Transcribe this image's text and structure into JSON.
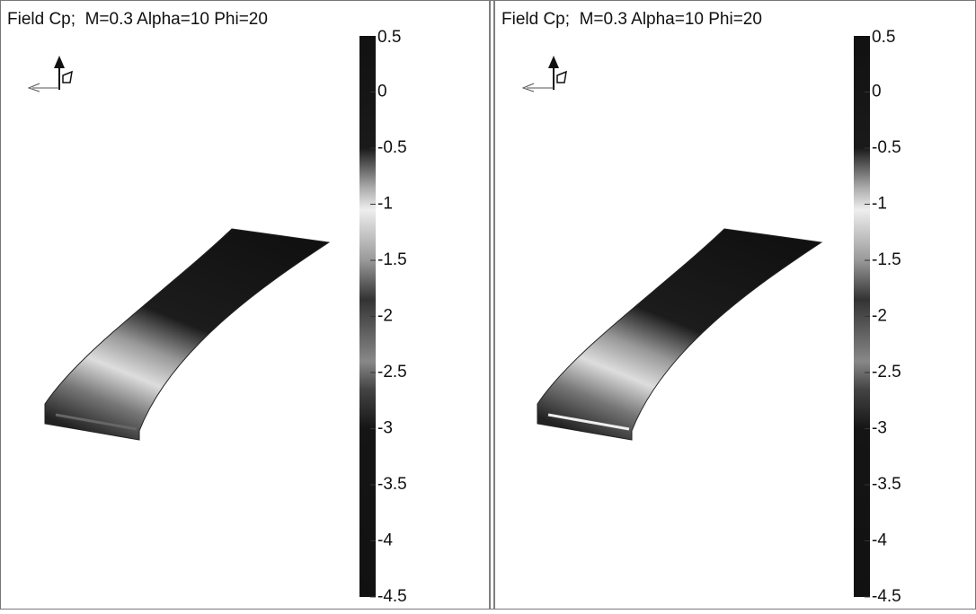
{
  "panels": [
    {
      "title": "Field Cp;  M=0.3 Alpha=10 Phi=20",
      "colorbar": {
        "ticks": [
          0.5,
          0,
          -0.5,
          -1,
          -1.5,
          -2,
          -2.5,
          -3,
          -3.5,
          -4,
          -4.5
        ]
      }
    },
    {
      "title": "Field Cp;  M=0.3 Alpha=10 Phi=20",
      "colorbar": {
        "ticks": [
          0.5,
          0,
          -0.5,
          -1,
          -1.5,
          -2,
          -2.5,
          -3,
          -3.5,
          -4,
          -4.5
        ]
      }
    }
  ]
}
